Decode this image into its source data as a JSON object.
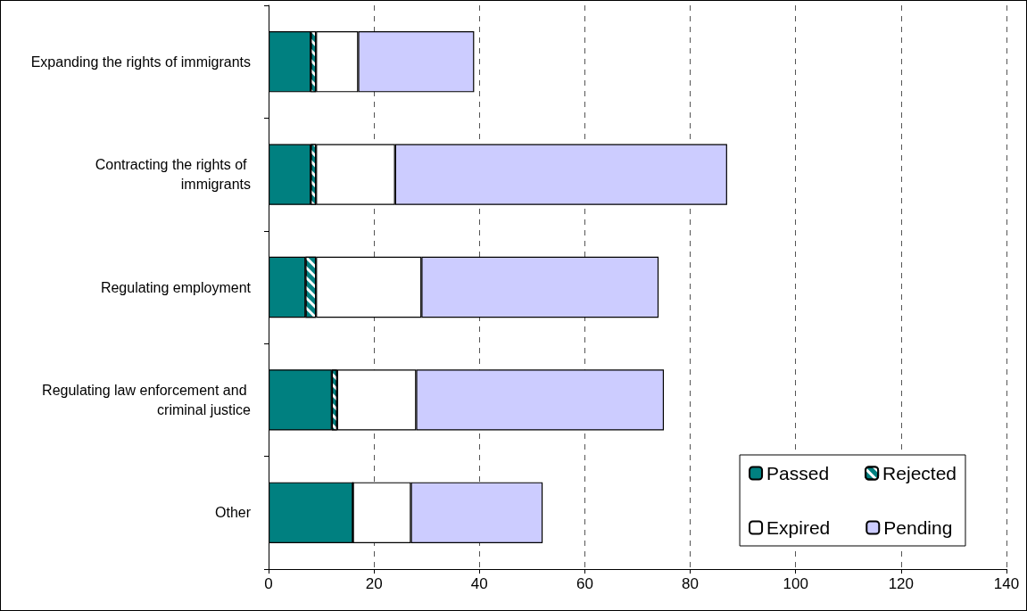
{
  "chart_data": {
    "type": "bar",
    "orientation": "horizontal",
    "stacked": true,
    "categories": [
      "Expanding the rights of immigrants",
      "Contracting the rights of immigrants",
      "Regulating employment",
      "Regulating law enforcement and criminal justice",
      "Other"
    ],
    "series": [
      {
        "name": "Passed",
        "color": "#008080",
        "values": [
          8,
          8,
          7,
          12,
          16
        ]
      },
      {
        "name": "Rejected",
        "color": "#008080",
        "values": [
          1,
          1,
          2,
          1,
          0
        ]
      },
      {
        "name": "Expired",
        "color": "#ffffff",
        "values": [
          8,
          15,
          20,
          15,
          11
        ]
      },
      {
        "name": "Pending",
        "color": "#ccccff",
        "values": [
          22,
          63,
          45,
          47,
          25
        ]
      }
    ],
    "xlim": [
      0,
      140
    ],
    "xticks": [
      0,
      20,
      40,
      60,
      80,
      100,
      120,
      140
    ],
    "grid": "x",
    "legend": "bottom right"
  }
}
